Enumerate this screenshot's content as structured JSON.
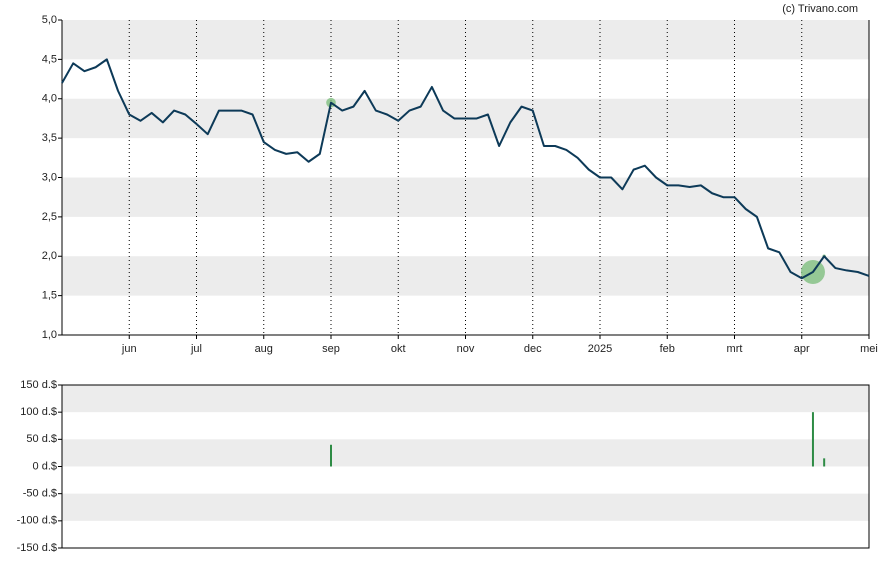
{
  "chart_data": [
    {
      "type": "line",
      "source": "(c) Trivano.com",
      "categories": [
        null,
        null,
        null,
        null,
        null,
        null,
        "jun",
        null,
        null,
        null,
        null,
        null,
        "jul",
        null,
        null,
        null,
        null,
        null,
        "aug",
        null,
        null,
        null,
        null,
        null,
        "sep",
        null,
        null,
        null,
        null,
        null,
        "okt",
        null,
        null,
        null,
        null,
        null,
        "nov",
        null,
        null,
        null,
        null,
        null,
        "dec",
        null,
        null,
        null,
        null,
        null,
        "2025",
        null,
        null,
        null,
        null,
        null,
        "feb",
        null,
        null,
        null,
        null,
        null,
        "mrt",
        null,
        null,
        null,
        null,
        null,
        "apr",
        null,
        null,
        null,
        null,
        null,
        "mei"
      ],
      "series": [
        {
          "color": "#0d3a58",
          "values": [
            4.2,
            4.45,
            4.35,
            4.4,
            4.5,
            4.1,
            3.8,
            3.72,
            3.82,
            3.7,
            3.85,
            3.8,
            3.68,
            3.55,
            3.85,
            3.85,
            3.85,
            3.8,
            3.45,
            3.35,
            3.3,
            3.32,
            3.2,
            3.3,
            3.95,
            3.85,
            3.9,
            4.1,
            3.85,
            3.8,
            3.72,
            3.85,
            3.9,
            4.15,
            3.85,
            3.75,
            3.75,
            3.75,
            3.8,
            3.4,
            3.7,
            3.9,
            3.85,
            3.4,
            3.4,
            3.35,
            3.25,
            3.1,
            3.0,
            3.0,
            2.85,
            3.1,
            3.15,
            3.0,
            2.9,
            2.9,
            2.88,
            2.9,
            2.8,
            2.75,
            2.75,
            2.6,
            2.5,
            2.1,
            2.05,
            1.8,
            1.72,
            1.8,
            2.0,
            1.85,
            1.82,
            1.8,
            1.75
          ]
        }
      ],
      "ylim": [
        1,
        5
      ],
      "yticks": [
        {
          "value": 1,
          "label": "1,0"
        },
        {
          "value": 1.5,
          "label": "1,5"
        },
        {
          "value": 2,
          "label": "2,0"
        },
        {
          "value": 2.5,
          "label": "2,5"
        },
        {
          "value": 3,
          "label": "3,0"
        },
        {
          "value": 3.5,
          "label": "3,5"
        },
        {
          "value": 4,
          "label": "4,0"
        },
        {
          "value": 4.5,
          "label": "4,5"
        },
        {
          "value": 5,
          "label": "5,0"
        }
      ],
      "grid": "bands"
    },
    {
      "type": "bar",
      "color": "#2e8b45",
      "marker_color": "#7fbf7f",
      "values": [
        null,
        null,
        null,
        null,
        null,
        null,
        null,
        null,
        null,
        null,
        null,
        null,
        null,
        null,
        null,
        null,
        null,
        null,
        null,
        null,
        null,
        null,
        null,
        null,
        40,
        null,
        null,
        null,
        null,
        null,
        null,
        null,
        null,
        null,
        null,
        null,
        null,
        null,
        null,
        null,
        null,
        null,
        null,
        null,
        null,
        null,
        null,
        null,
        null,
        null,
        null,
        null,
        null,
        null,
        null,
        null,
        null,
        null,
        null,
        null,
        null,
        null,
        null,
        null,
        null,
        null,
        null,
        100,
        15,
        null,
        null,
        null,
        null
      ],
      "ylim": [
        -150,
        150
      ],
      "yticks": [
        {
          "value": -150,
          "label": "-150 d.$"
        },
        {
          "value": -100,
          "label": "-100 d.$"
        },
        {
          "value": -50,
          "label": "-50 d.$"
        },
        {
          "value": 0,
          "label": "0 d.$"
        },
        {
          "value": 50,
          "label": "50 d.$"
        },
        {
          "value": 100,
          "label": "100 d.$"
        },
        {
          "value": 150,
          "label": "150 d.$"
        }
      ],
      "grid": "bands"
    }
  ]
}
